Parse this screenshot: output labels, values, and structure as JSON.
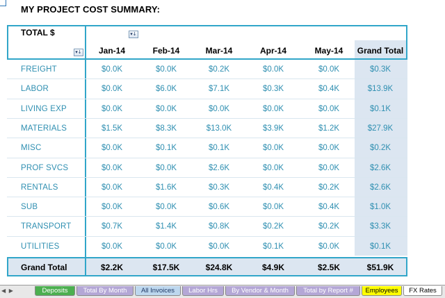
{
  "title": "MY PROJECT COST SUMMARY:",
  "pivot": {
    "value_label": "TOTAL $",
    "filter_glyph": "▾↓",
    "columns": [
      "Jan-14",
      "Feb-14",
      "Mar-14",
      "Apr-14",
      "May-14",
      "Grand Total"
    ],
    "rows": [
      {
        "label": "FREIGHT",
        "values": [
          "$0.0K",
          "$0.0K",
          "$0.2K",
          "$0.0K",
          "$0.0K",
          "$0.3K"
        ]
      },
      {
        "label": "LABOR",
        "values": [
          "$0.0K",
          "$6.0K",
          "$7.1K",
          "$0.3K",
          "$0.4K",
          "$13.9K"
        ]
      },
      {
        "label": "LIVING EXP",
        "values": [
          "$0.0K",
          "$0.0K",
          "$0.0K",
          "$0.0K",
          "$0.0K",
          "$0.1K"
        ]
      },
      {
        "label": "MATERIALS",
        "values": [
          "$1.5K",
          "$8.3K",
          "$13.0K",
          "$3.9K",
          "$1.2K",
          "$27.9K"
        ]
      },
      {
        "label": "MISC",
        "values": [
          "$0.0K",
          "$0.1K",
          "$0.1K",
          "$0.0K",
          "$0.0K",
          "$0.2K"
        ]
      },
      {
        "label": "PROF SVCS",
        "values": [
          "$0.0K",
          "$0.0K",
          "$2.6K",
          "$0.0K",
          "$0.0K",
          "$2.6K"
        ]
      },
      {
        "label": "RENTALS",
        "values": [
          "$0.0K",
          "$1.6K",
          "$0.3K",
          "$0.4K",
          "$0.2K",
          "$2.6K"
        ]
      },
      {
        "label": "SUB",
        "values": [
          "$0.0K",
          "$0.0K",
          "$0.6K",
          "$0.0K",
          "$0.4K",
          "$1.0K"
        ]
      },
      {
        "label": "TRANSPORT",
        "values": [
          "$0.7K",
          "$1.4K",
          "$0.8K",
          "$0.2K",
          "$0.2K",
          "$3.3K"
        ]
      },
      {
        "label": "UTILITIES",
        "values": [
          "$0.0K",
          "$0.0K",
          "$0.0K",
          "$0.1K",
          "$0.0K",
          "$0.1K"
        ]
      }
    ],
    "grand_total": {
      "label": "Grand Total",
      "values": [
        "$2.2K",
        "$17.5K",
        "$24.8K",
        "$4.9K",
        "$2.5K",
        "$51.9K"
      ]
    }
  },
  "tabs": {
    "nav_arrows": "◀ ▶",
    "items": [
      {
        "label": "Deposits",
        "color": "#4caf50",
        "text_color": "#ffffff"
      },
      {
        "label": "Total By Month",
        "color": "#b4a7d6",
        "text_color": "#ffffff"
      },
      {
        "label": "All Invoices",
        "color": "#bdd7ee",
        "text_color": "#1f3864"
      },
      {
        "label": "Labor Hrs",
        "color": "#b4a7d6",
        "text_color": "#ffffff"
      },
      {
        "label": "By Vendor & Month",
        "color": "#b4a7d6",
        "text_color": "#ffffff"
      },
      {
        "label": "Total by Report #",
        "color": "#b4a7d6",
        "text_color": "#ffffff"
      },
      {
        "label": "Employees",
        "color": "#ffff00",
        "text_color": "#000000"
      },
      {
        "label": "FX Rates",
        "color": "#ffffff",
        "text_color": "#000000"
      }
    ]
  }
}
